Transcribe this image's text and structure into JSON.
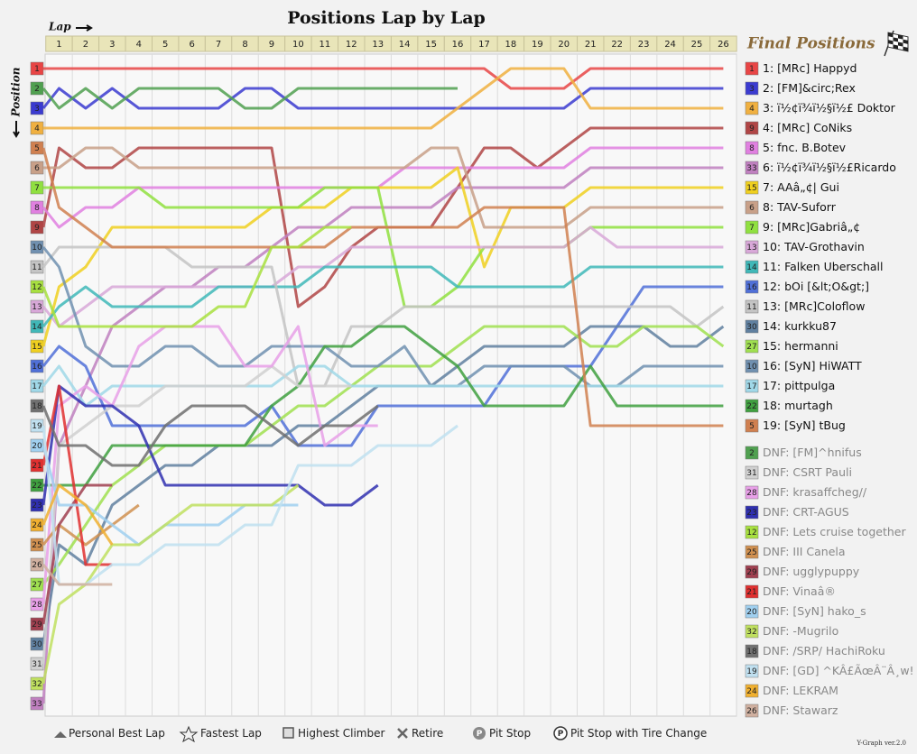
{
  "chart_data": {
    "type": "line",
    "title": "Positions Lap by Lap",
    "x_label": "Lap",
    "y_label": "Position",
    "legend_title": "Final Positions",
    "footer": "Y-Graph ver.2.0",
    "y_inverted": true,
    "grid": true,
    "xlim": [
      0,
      26
    ],
    "ylim": [
      1,
      33
    ],
    "x": [
      0,
      1,
      2,
      3,
      4,
      5,
      6,
      7,
      8,
      9,
      10,
      11,
      12,
      13,
      14,
      15,
      16,
      17,
      18,
      19,
      20,
      21,
      22,
      23,
      24,
      25,
      26
    ],
    "xticks": [
      1,
      2,
      3,
      4,
      5,
      6,
      7,
      8,
      9,
      10,
      11,
      12,
      13,
      14,
      15,
      16,
      17,
      18,
      19,
      20,
      21,
      22,
      23,
      24,
      25,
      26
    ],
    "yticks": [
      1,
      2,
      3,
      4,
      5,
      6,
      7,
      8,
      9,
      10,
      11,
      12,
      13,
      14,
      15,
      16,
      17,
      18,
      19,
      20,
      21,
      22,
      23,
      24,
      25,
      26,
      27,
      28,
      29,
      30,
      31,
      32,
      33
    ],
    "legend_items": [
      "Personal Best Lap",
      "Fastest Lap",
      "Highest Climber",
      "Retire",
      "Pit Stop",
      "Pit Stop with Tire Change"
    ],
    "series": [
      {
        "name": "1: [MRc] Happyd",
        "color": "#e84545",
        "values": [
          1,
          1,
          1,
          1,
          1,
          1,
          1,
          1,
          1,
          1,
          1,
          1,
          1,
          1,
          1,
          1,
          1,
          1,
          2,
          2,
          2,
          1,
          1,
          1,
          1,
          1,
          1
        ]
      },
      {
        "name": "2: [FM]&circ;Rex",
        "color": "#3b3bd0",
        "values": [
          3,
          2,
          3,
          2,
          3,
          3,
          3,
          3,
          2,
          2,
          3,
          3,
          3,
          3,
          3,
          3,
          3,
          3,
          3,
          3,
          3,
          2,
          2,
          2,
          2,
          2,
          2
        ]
      },
      {
        "name": "3: ï½¢ï¾ï½§ï½£ Doktor",
        "color": "#f0b040",
        "values": [
          4,
          4,
          4,
          4,
          4,
          4,
          4,
          4,
          4,
          4,
          4,
          4,
          4,
          4,
          4,
          4,
          3,
          2,
          1,
          1,
          1,
          3,
          3,
          3,
          3,
          3,
          3
        ]
      },
      {
        "name": "4: [MRc] CoNiks",
        "color": "#b04545",
        "values": [
          9,
          5,
          6,
          6,
          5,
          5,
          5,
          5,
          5,
          5,
          13,
          12,
          10,
          9,
          9,
          9,
          7,
          5,
          5,
          6,
          5,
          4,
          4,
          4,
          4,
          4,
          4
        ]
      },
      {
        "name": "5: fnc. B.Botev",
        "color": "#e080e0",
        "values": [
          8,
          9,
          8,
          8,
          7,
          7,
          7,
          7,
          7,
          7,
          7,
          7,
          7,
          7,
          6,
          6,
          6,
          6,
          6,
          6,
          6,
          5,
          5,
          5,
          5,
          5,
          5
        ]
      },
      {
        "name": "6: ï½¢ï¾ï½§ï½£Ricardo",
        "color": "#c080c0",
        "values": [
          33,
          20,
          17,
          14,
          13,
          12,
          12,
          11,
          11,
          10,
          9,
          9,
          8,
          8,
          8,
          8,
          7,
          7,
          7,
          7,
          7,
          6,
          6,
          6,
          6,
          6,
          6
        ]
      },
      {
        "name": "7: AAâ„¢| Gui",
        "color": "#f0d020",
        "values": [
          15,
          12,
          11,
          9,
          9,
          9,
          9,
          9,
          9,
          8,
          8,
          8,
          7,
          7,
          7,
          7,
          6,
          11,
          8,
          8,
          8,
          7,
          7,
          7,
          7,
          7,
          7
        ]
      },
      {
        "name": "8: TAV-Suforr",
        "color": "#c8a088",
        "values": [
          6,
          6,
          5,
          5,
          6,
          6,
          6,
          6,
          6,
          6,
          6,
          6,
          6,
          6,
          6,
          5,
          5,
          9,
          9,
          9,
          9,
          8,
          8,
          8,
          8,
          8,
          8
        ]
      },
      {
        "name": "9: [MRc]Gabriâ„¢",
        "color": "#90e040",
        "values": [
          7,
          7,
          7,
          7,
          7,
          8,
          8,
          8,
          8,
          8,
          8,
          7,
          7,
          7,
          13,
          13,
          12,
          10,
          10,
          10,
          10,
          9,
          9,
          9,
          9,
          9,
          9
        ]
      },
      {
        "name": "10: TAV-Grothavin",
        "color": "#d8a8d8",
        "values": [
          13,
          14,
          13,
          12,
          12,
          12,
          12,
          12,
          12,
          12,
          11,
          11,
          10,
          10,
          10,
          10,
          10,
          10,
          10,
          10,
          10,
          9,
          10,
          10,
          10,
          10,
          10
        ]
      },
      {
        "name": "11: Falken Uberschall",
        "color": "#40b8b8",
        "values": [
          14,
          13,
          12,
          13,
          13,
          13,
          13,
          12,
          12,
          12,
          12,
          11,
          11,
          11,
          11,
          11,
          12,
          12,
          12,
          12,
          12,
          11,
          11,
          11,
          11,
          11,
          11
        ]
      },
      {
        "name": "12: bOi [&lt;O&gt;]",
        "color": "#5070d8",
        "values": [
          16,
          15,
          16,
          19,
          19,
          19,
          19,
          19,
          19,
          18,
          20,
          20,
          20,
          18,
          18,
          18,
          18,
          18,
          16,
          16,
          16,
          16,
          14,
          12,
          12,
          12,
          12
        ]
      },
      {
        "name": "13: [MRc]Coloflow",
        "color": "#c4c4c4",
        "values": [
          11,
          10,
          10,
          10,
          10,
          10,
          11,
          11,
          11,
          11,
          17,
          17,
          14,
          14,
          13,
          13,
          13,
          13,
          13,
          13,
          13,
          13,
          13,
          13,
          13,
          14,
          13
        ]
      },
      {
        "name": "14: kurkku87",
        "color": "#6080a0",
        "values": [
          30,
          25,
          26,
          23,
          22,
          21,
          21,
          20,
          20,
          20,
          19,
          19,
          18,
          17,
          17,
          17,
          16,
          15,
          15,
          15,
          15,
          14,
          14,
          14,
          15,
          15,
          14
        ]
      },
      {
        "name": "15: hermanni",
        "color": "#a0e050",
        "values": [
          27,
          26,
          24,
          22,
          21,
          20,
          20,
          20,
          20,
          19,
          18,
          18,
          17,
          16,
          16,
          16,
          15,
          14,
          14,
          14,
          14,
          15,
          15,
          14,
          14,
          14,
          15
        ]
      },
      {
        "name": "16: [SyN] HiWATT",
        "color": "#7090b0",
        "values": [
          10,
          11,
          15,
          16,
          16,
          15,
          15,
          16,
          16,
          15,
          15,
          15,
          16,
          16,
          15,
          17,
          17,
          16,
          16,
          16,
          16,
          17,
          17,
          16,
          16,
          16,
          16
        ]
      },
      {
        "name": "17: pittpulga",
        "color": "#a0d8e8",
        "values": [
          17,
          16,
          18,
          17,
          17,
          17,
          17,
          17,
          17,
          17,
          16,
          16,
          17,
          17,
          17,
          17,
          17,
          17,
          17,
          17,
          17,
          17,
          17,
          17,
          17,
          17,
          17
        ]
      },
      {
        "name": "18: murtagh",
        "color": "#40a040",
        "values": [
          22,
          22,
          22,
          20,
          20,
          20,
          20,
          20,
          20,
          18,
          17,
          15,
          15,
          14,
          14,
          15,
          16,
          18,
          18,
          18,
          18,
          16,
          18,
          18,
          18,
          18,
          18
        ]
      },
      {
        "name": "19: [SyN] tBug",
        "color": "#d08050",
        "values": [
          5,
          8,
          9,
          10,
          10,
          10,
          10,
          10,
          10,
          10,
          10,
          10,
          9,
          9,
          9,
          9,
          9,
          8,
          8,
          8,
          8,
          19,
          19,
          19,
          19,
          19,
          19
        ]
      },
      {
        "name": "DNF: [FM]^hnifus",
        "color": "#50a050",
        "values": [
          2,
          3,
          2,
          3,
          2,
          2,
          2,
          2,
          3,
          3,
          2,
          2,
          2,
          2,
          2,
          2,
          2,
          null,
          null,
          null,
          null,
          null,
          null,
          null,
          null,
          null,
          null
        ]
      },
      {
        "name": "DNF: CSRT Pauli",
        "color": "#d0d0d0",
        "values": [
          31,
          20,
          19,
          18,
          18,
          17,
          17,
          17,
          17,
          16,
          17,
          17,
          17,
          null,
          null,
          null,
          null,
          null,
          null,
          null,
          null,
          null,
          null,
          null,
          null,
          null,
          null
        ]
      },
      {
        "name": "DNF: krasaffcheg//",
        "color": "#e8a0e8",
        "values": [
          28,
          18,
          17,
          18,
          15,
          14,
          14,
          14,
          16,
          16,
          14,
          20,
          19,
          19,
          null,
          null,
          null,
          null,
          null,
          null,
          null,
          null,
          null,
          null,
          null,
          null,
          null
        ]
      },
      {
        "name": "DNF: CRT-AGUS",
        "color": "#3030b0",
        "values": [
          23,
          17,
          18,
          18,
          19,
          22,
          22,
          22,
          22,
          22,
          22,
          23,
          23,
          22,
          null,
          null,
          null,
          null,
          null,
          null,
          null,
          null,
          null,
          null,
          null,
          null,
          null
        ]
      },
      {
        "name": "DNF: Lets cruise together",
        "color": "#a8e040",
        "values": [
          12,
          14,
          14,
          14,
          14,
          14,
          14,
          13,
          13,
          10,
          10,
          9,
          9,
          null,
          null,
          null,
          null,
          null,
          null,
          null,
          null,
          null,
          null,
          null,
          null,
          null,
          null
        ]
      },
      {
        "name": "DNF: III Canela",
        "color": "#d09050",
        "values": [
          25,
          24,
          25,
          24,
          23,
          null,
          null,
          null,
          null,
          null,
          null,
          null,
          null,
          null,
          null,
          null,
          null,
          null,
          null,
          null,
          null,
          null,
          null,
          null,
          null,
          null,
          null
        ]
      },
      {
        "name": "DNF: ugglypuppy",
        "color": "#a04050",
        "values": [
          29,
          24,
          22,
          22,
          null,
          null,
          null,
          null,
          null,
          null,
          null,
          null,
          null,
          null,
          null,
          null,
          null,
          null,
          null,
          null,
          null,
          null,
          null,
          null,
          null,
          null,
          null
        ]
      },
      {
        "name": "DNF: Vinaâ®",
        "color": "#e03030",
        "values": [
          21,
          17,
          26,
          26,
          null,
          null,
          null,
          null,
          null,
          null,
          null,
          null,
          null,
          null,
          null,
          null,
          null,
          null,
          null,
          null,
          null,
          null,
          null,
          null,
          null,
          null,
          null
        ]
      },
      {
        "name": "DNF: [SyN] hako_s",
        "color": "#a0d0f0",
        "values": [
          20,
          23,
          23,
          24,
          25,
          24,
          24,
          24,
          23,
          23,
          23,
          null,
          null,
          null,
          null,
          null,
          null,
          null,
          null,
          null,
          null,
          null,
          null,
          null,
          null,
          null,
          null
        ]
      },
      {
        "name": "DNF: -Mugrilo",
        "color": "#c0e060",
        "values": [
          32,
          28,
          27,
          25,
          25,
          24,
          23,
          23,
          23,
          23,
          22,
          null,
          null,
          null,
          null,
          null,
          null,
          null,
          null,
          null,
          null,
          null,
          null,
          null,
          null,
          null,
          null
        ]
      },
      {
        "name": "DNF: /SRP/ HachiRoku",
        "color": "#707070",
        "values": [
          18,
          20,
          20,
          21,
          21,
          19,
          18,
          18,
          18,
          19,
          20,
          19,
          19,
          18,
          null,
          null,
          null,
          null,
          null,
          null,
          null,
          null,
          null,
          null,
          null,
          null,
          null
        ]
      },
      {
        "name": "DNF: [GD] ^KÂ£ÃœÂ¨Â¸w!",
        "color": "#c0e0f0",
        "values": [
          19,
          27,
          27,
          26,
          26,
          25,
          25,
          25,
          24,
          24,
          21,
          21,
          21,
          20,
          20,
          20,
          19,
          null,
          null,
          null,
          null,
          null,
          null,
          null,
          null,
          null,
          null
        ]
      },
      {
        "name": "DNF: LEKRAM",
        "color": "#f0b030",
        "values": [
          24,
          22,
          23,
          25,
          null,
          null,
          null,
          null,
          null,
          null,
          null,
          null,
          null,
          null,
          null,
          null,
          null,
          null,
          null,
          null,
          null,
          null,
          null,
          null,
          null,
          null,
          null
        ]
      },
      {
        "name": "DNF: Stawarz",
        "color": "#d0b0a0",
        "values": [
          26,
          27,
          27,
          27,
          null,
          null,
          null,
          null,
          null,
          null,
          null,
          null,
          null,
          null,
          null,
          null,
          null,
          null,
          null,
          null,
          null,
          null,
          null,
          null,
          null,
          null,
          null
        ]
      }
    ]
  }
}
